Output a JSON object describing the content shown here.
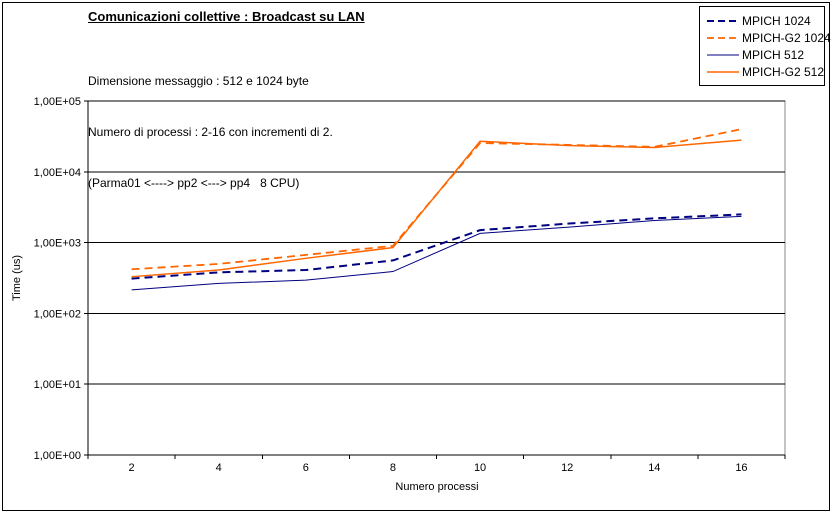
{
  "header": {
    "title": "Comunicazioni collettive : Broadcast su LAN",
    "subtitle_lines": [
      "Dimensione messaggio : 512 e 1024 byte",
      "Numero di processi : 2-16 con incrementi di 2.",
      "(Parma01 <----> pp2 <---> pp4   8 CPU)"
    ]
  },
  "colors": {
    "navy": "#000080",
    "orange": "#FF6600",
    "gridline": "#000000",
    "plot_border": "#888888",
    "background": "#FFFFFF"
  },
  "chart_data": {
    "type": "line",
    "x": [
      2,
      4,
      6,
      8,
      10,
      12,
      14,
      16
    ],
    "series": [
      {
        "name": "MPICH 1024",
        "color": "#000080",
        "dash": true,
        "width": 2,
        "values": [
          310,
          380,
          410,
          560,
          1500,
          1850,
          2200,
          2500
        ]
      },
      {
        "name": "MPICH-G2 1024",
        "color": "#FF6600",
        "dash": true,
        "width": 1.8,
        "values": [
          420,
          500,
          670,
          900,
          25500,
          24000,
          22500,
          40000
        ]
      },
      {
        "name": "MPICH 512",
        "color": "#000080",
        "dash": false,
        "width": 1,
        "values": [
          215,
          265,
          295,
          390,
          1350,
          1650,
          2050,
          2350
        ]
      },
      {
        "name": "MPICH-G2 512",
        "color": "#FF6600",
        "dash": false,
        "width": 1.5,
        "values": [
          330,
          410,
          600,
          850,
          27000,
          23500,
          22000,
          28000
        ]
      }
    ],
    "xlabel": "Numero processi",
    "ylabel": "Time (us)",
    "yscale": "log",
    "ylim": [
      1,
      100000
    ],
    "ytick_labels": [
      "1,00E+00",
      "1,00E+01",
      "1,00E+02",
      "1,00E+03",
      "1,00E+04",
      "1,00E+05"
    ],
    "xtick_labels": [
      "2",
      "4",
      "6",
      "8",
      "10",
      "12",
      "14",
      "16"
    ],
    "grid": true,
    "legend_position": "top-right"
  }
}
